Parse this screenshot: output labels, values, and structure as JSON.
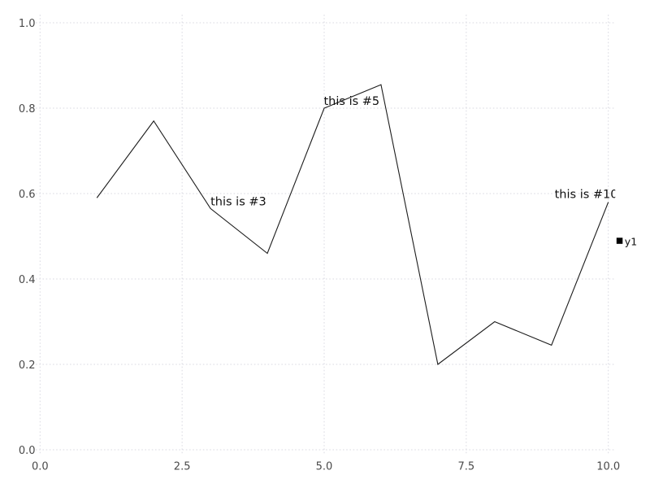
{
  "chart_data": {
    "type": "line",
    "title": "",
    "xlabel": "",
    "ylabel": "",
    "x": [
      1,
      2,
      3,
      4,
      5,
      6,
      7,
      8,
      9,
      10
    ],
    "series": [
      {
        "name": "y1",
        "color": "#1c1c1c",
        "values": [
          0.59,
          0.77,
          0.565,
          0.46,
          0.8,
          0.855,
          0.2,
          0.3,
          0.245,
          0.58
        ]
      }
    ],
    "xlim": [
      0,
      10
    ],
    "ylim": [
      0,
      1
    ],
    "x_ticks": {
      "values": [
        0,
        2.5,
        5,
        7.5,
        10
      ],
      "labels": [
        "0.0",
        "2.5",
        "5.0",
        "7.5",
        "10.0"
      ]
    },
    "y_ticks": {
      "values": [
        0,
        0.2,
        0.4,
        0.6,
        0.8,
        1.0
      ],
      "labels": [
        "0.0",
        "0.2",
        "0.4",
        "0.6",
        "0.8",
        "1.0"
      ]
    },
    "grid": {
      "style": "dotted",
      "on": true
    },
    "annotations": [
      {
        "label": "this is #3",
        "x": 3,
        "y": 0.565,
        "anchor": "start",
        "dx": 0,
        "dy": -4
      },
      {
        "label": "this is #5",
        "x": 5,
        "y": 0.8,
        "anchor": "start",
        "dx": -0.5,
        "dy": -4
      },
      {
        "label": "this is #10",
        "x": 10,
        "y": 0.58,
        "anchor": "end",
        "dx": 11.8,
        "dy": -5
      }
    ],
    "legend": {
      "position": "right-center",
      "entries": [
        {
          "label": "y1",
          "marker": "filled-square",
          "color": "#000000"
        }
      ]
    },
    "colors": {
      "background": "#ffffff",
      "grid": "#d9d9e2",
      "tick_label": "#4a4a4a",
      "annotation": "#101010",
      "line": "#1c1c1c",
      "legend_label": "#111111"
    }
  }
}
